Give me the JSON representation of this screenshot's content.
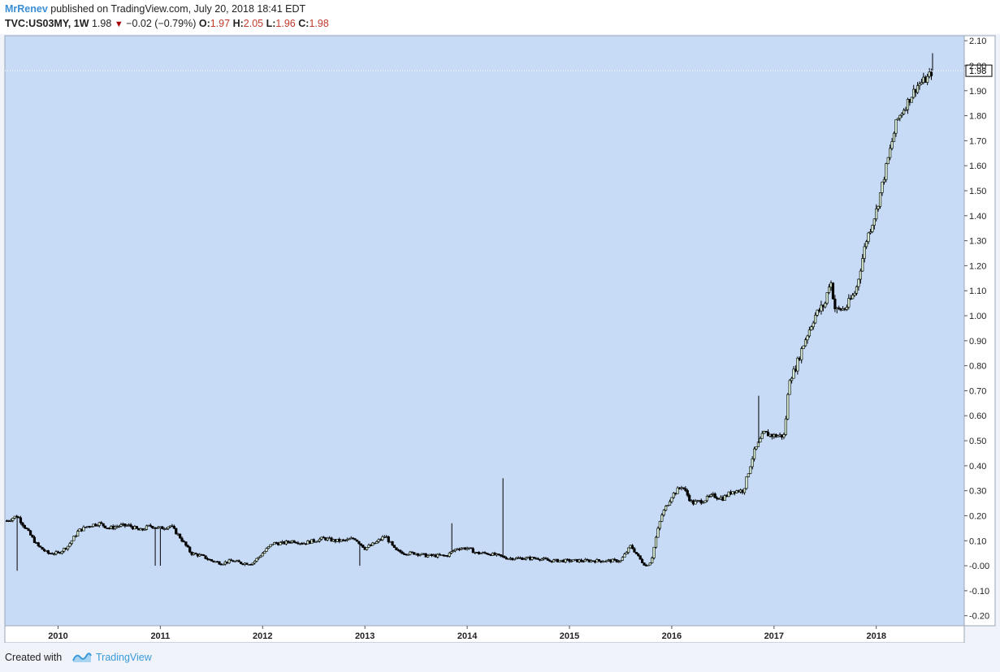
{
  "header": {
    "author": "MrRenev",
    "published": "published on TradingView.com, July 20, 2018 18:41 EDT",
    "symbol": "TVC:US03MY, 1W",
    "last": "1.98",
    "change_arrow": "▼",
    "change": "−0.02 (−0.79%)",
    "open_label": "O:",
    "open": "1.97",
    "high_label": "H:",
    "high": "2.05",
    "low_label": "L:",
    "low": "1.96",
    "close_label": "C:",
    "close": "1.98"
  },
  "footer": {
    "created_with": "Created with",
    "brand": "TradingView"
  },
  "colors": {
    "plot_bg": "#c8dbf6",
    "up_candle": "#d5ecd0",
    "down_candle": "#000000",
    "wick": "#000000",
    "axis_text": "#222222",
    "brand_blue": "#3a9ad9",
    "down_arrow": "#a60000"
  },
  "chart_data": {
    "type": "candlestick",
    "interval": "1W",
    "last_price_label": "1.98",
    "ylim": [
      -0.24,
      2.12
    ],
    "y_ticks": [
      -0.2,
      -0.1,
      0.0,
      0.1,
      0.2,
      0.3,
      0.4,
      0.5,
      0.6,
      0.7,
      0.8,
      0.9,
      1.0,
      1.1,
      1.2,
      1.3,
      1.4,
      1.5,
      1.6,
      1.7,
      1.8,
      1.9,
      2.0,
      2.1
    ],
    "y_tick_labels": [
      "-0.20",
      "-0.10",
      "-0.00",
      "0.10",
      "0.20",
      "0.30",
      "0.40",
      "0.50",
      "0.60",
      "0.70",
      "0.80",
      "0.90",
      "1.00",
      "1.10",
      "1.20",
      "1.30",
      "1.40",
      "1.50",
      "1.60",
      "1.70",
      "1.80",
      "1.90",
      "2.00",
      "2.10"
    ],
    "x_ticks": [
      "2010",
      "2011",
      "2012",
      "2013",
      "2014",
      "2015",
      "2016",
      "2017",
      "2018"
    ],
    "x_range": [
      2009.48,
      2018.86
    ],
    "close_path": [
      [
        2009.5,
        0.18
      ],
      [
        2009.6,
        0.2
      ],
      [
        2009.7,
        0.14
      ],
      [
        2009.8,
        0.08
      ],
      [
        2009.9,
        0.05
      ],
      [
        2010.0,
        0.05
      ],
      [
        2010.1,
        0.08
      ],
      [
        2010.2,
        0.14
      ],
      [
        2010.3,
        0.16
      ],
      [
        2010.4,
        0.17
      ],
      [
        2010.5,
        0.15
      ],
      [
        2010.6,
        0.16
      ],
      [
        2010.7,
        0.16
      ],
      [
        2010.8,
        0.14
      ],
      [
        2010.9,
        0.16
      ],
      [
        2011.0,
        0.15
      ],
      [
        2011.1,
        0.16
      ],
      [
        2011.2,
        0.11
      ],
      [
        2011.3,
        0.05
      ],
      [
        2011.4,
        0.04
      ],
      [
        2011.5,
        0.02
      ],
      [
        2011.6,
        0.01
      ],
      [
        2011.7,
        0.02
      ],
      [
        2011.8,
        0.01
      ],
      [
        2011.9,
        0.01
      ],
      [
        2012.0,
        0.05
      ],
      [
        2012.1,
        0.09
      ],
      [
        2012.2,
        0.09
      ],
      [
        2012.3,
        0.1
      ],
      [
        2012.4,
        0.09
      ],
      [
        2012.5,
        0.1
      ],
      [
        2012.6,
        0.11
      ],
      [
        2012.7,
        0.1
      ],
      [
        2012.8,
        0.1
      ],
      [
        2012.9,
        0.11
      ],
      [
        2013.0,
        0.07
      ],
      [
        2013.1,
        0.09
      ],
      [
        2013.2,
        0.12
      ],
      [
        2013.3,
        0.06
      ],
      [
        2013.4,
        0.05
      ],
      [
        2013.5,
        0.05
      ],
      [
        2013.6,
        0.04
      ],
      [
        2013.7,
        0.04
      ],
      [
        2013.8,
        0.04
      ],
      [
        2013.9,
        0.07
      ],
      [
        2014.0,
        0.07
      ],
      [
        2014.1,
        0.05
      ],
      [
        2014.2,
        0.05
      ],
      [
        2014.3,
        0.04
      ],
      [
        2014.4,
        0.03
      ],
      [
        2014.5,
        0.03
      ],
      [
        2014.6,
        0.03
      ],
      [
        2014.7,
        0.03
      ],
      [
        2014.8,
        0.02
      ],
      [
        2014.9,
        0.02
      ],
      [
        2015.0,
        0.02
      ],
      [
        2015.1,
        0.02
      ],
      [
        2015.2,
        0.02
      ],
      [
        2015.3,
        0.02
      ],
      [
        2015.4,
        0.02
      ],
      [
        2015.5,
        0.02
      ],
      [
        2015.6,
        0.08
      ],
      [
        2015.7,
        0.02
      ],
      [
        2015.75,
        0.0
      ],
      [
        2015.8,
        0.02
      ],
      [
        2015.85,
        0.12
      ],
      [
        2015.9,
        0.2
      ],
      [
        2016.0,
        0.28
      ],
      [
        2016.1,
        0.32
      ],
      [
        2016.2,
        0.25
      ],
      [
        2016.3,
        0.26
      ],
      [
        2016.4,
        0.28
      ],
      [
        2016.5,
        0.27
      ],
      [
        2016.6,
        0.3
      ],
      [
        2016.7,
        0.3
      ],
      [
        2016.8,
        0.45
      ],
      [
        2016.9,
        0.53
      ],
      [
        2017.0,
        0.52
      ],
      [
        2017.1,
        0.52
      ],
      [
        2017.15,
        0.75
      ],
      [
        2017.2,
        0.78
      ],
      [
        2017.3,
        0.9
      ],
      [
        2017.4,
        1.0
      ],
      [
        2017.5,
        1.05
      ],
      [
        2017.55,
        1.15
      ],
      [
        2017.6,
        1.02
      ],
      [
        2017.7,
        1.03
      ],
      [
        2017.8,
        1.1
      ],
      [
        2017.9,
        1.3
      ],
      [
        2018.0,
        1.42
      ],
      [
        2018.1,
        1.6
      ],
      [
        2018.2,
        1.78
      ],
      [
        2018.3,
        1.85
      ],
      [
        2018.4,
        1.92
      ],
      [
        2018.5,
        1.95
      ],
      [
        2018.55,
        1.98
      ]
    ],
    "spikes": [
      [
        2009.6,
        -0.02
      ],
      [
        2010.95,
        0.0
      ],
      [
        2011.0,
        0.0
      ],
      [
        2012.95,
        0.0
      ],
      [
        2013.85,
        0.17
      ],
      [
        2014.35,
        0.35
      ],
      [
        2016.85,
        0.68
      ],
      [
        2018.55,
        2.05
      ]
    ]
  }
}
